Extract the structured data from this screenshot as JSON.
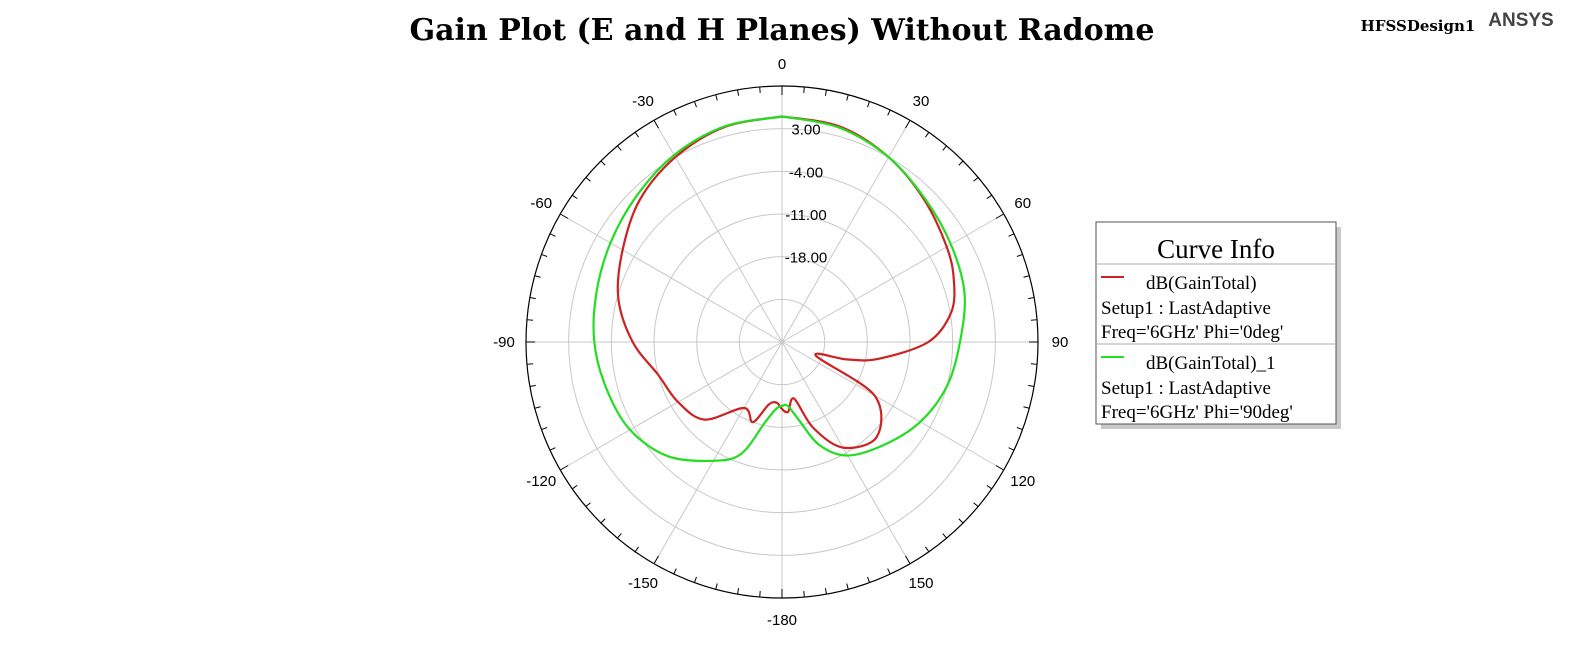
{
  "chart_data": {
    "type": "polar-line",
    "title": "Gain Plot (E and H Planes) Without Radome",
    "design_name": "HFSSDesign1",
    "brand": "ANSYS",
    "angle_ticks": [
      0,
      30,
      60,
      90,
      120,
      150,
      -180,
      -150,
      -120,
      -90,
      -60,
      -30
    ],
    "radial_ticks": [
      "3.00",
      "-4.00",
      "-11.00",
      "-18.00"
    ],
    "radial_range": [
      -32,
      10
    ],
    "legend_title": "Curve Info",
    "series": [
      {
        "name": "dB(GainTotal)",
        "setup": "Setup1 : LastAdaptive",
        "params": "Freq='6GHz' Phi='0deg'",
        "color": "#cc2222",
        "points": [
          [
            0,
            5.0
          ],
          [
            15,
            4.6
          ],
          [
            30,
            3.0
          ],
          [
            45,
            1.0
          ],
          [
            60,
            -0.8
          ],
          [
            70,
            -2.0
          ],
          [
            80,
            -3.8
          ],
          [
            90,
            -8.0
          ],
          [
            100,
            -16.0
          ],
          [
            105,
            -21.0
          ],
          [
            112,
            -26.0
          ],
          [
            120,
            -14.5
          ],
          [
            135,
            -10.0
          ],
          [
            150,
            -12.0
          ],
          [
            160,
            -17.0
          ],
          [
            168,
            -22.5
          ],
          [
            175,
            -20.5
          ],
          [
            180,
            -21.0
          ],
          [
            185,
            -22.0
          ],
          [
            192,
            -21.5
          ],
          [
            200,
            -18.0
          ],
          [
            210,
            -19.5
          ],
          [
            225,
            -14.0
          ],
          [
            240,
            -12.3
          ],
          [
            255,
            -11.0
          ],
          [
            270,
            -7.5
          ],
          [
            285,
            -4.2
          ],
          [
            300,
            -1.8
          ],
          [
            315,
            1.0
          ],
          [
            330,
            3.0
          ],
          [
            345,
            4.5
          ],
          [
            360,
            5.0
          ]
        ]
      },
      {
        "name": "dB(GainTotal)_1",
        "setup": "Setup1 : LastAdaptive",
        "params": "Freq='6GHz' Phi='90deg'",
        "color": "#22dd22",
        "points": [
          [
            0,
            5.0
          ],
          [
            15,
            4.4
          ],
          [
            30,
            3.0
          ],
          [
            45,
            1.2
          ],
          [
            60,
            0.0
          ],
          [
            75,
            -1.0
          ],
          [
            90,
            -2.8
          ],
          [
            105,
            -4.0
          ],
          [
            120,
            -5.8
          ],
          [
            135,
            -8.2
          ],
          [
            150,
            -10.5
          ],
          [
            160,
            -14.0
          ],
          [
            168,
            -19.0
          ],
          [
            175,
            -21.5
          ],
          [
            180,
            -21.5
          ],
          [
            185,
            -21.0
          ],
          [
            192,
            -18.5
          ],
          [
            200,
            -12.5
          ],
          [
            210,
            -9.5
          ],
          [
            225,
            -5.5
          ],
          [
            240,
            -3.2
          ],
          [
            255,
            -2.2
          ],
          [
            270,
            -1.2
          ],
          [
            285,
            -0.5
          ],
          [
            300,
            0.5
          ],
          [
            315,
            1.8
          ],
          [
            330,
            3.4
          ],
          [
            345,
            4.6
          ],
          [
            360,
            5.0
          ]
        ]
      }
    ]
  }
}
